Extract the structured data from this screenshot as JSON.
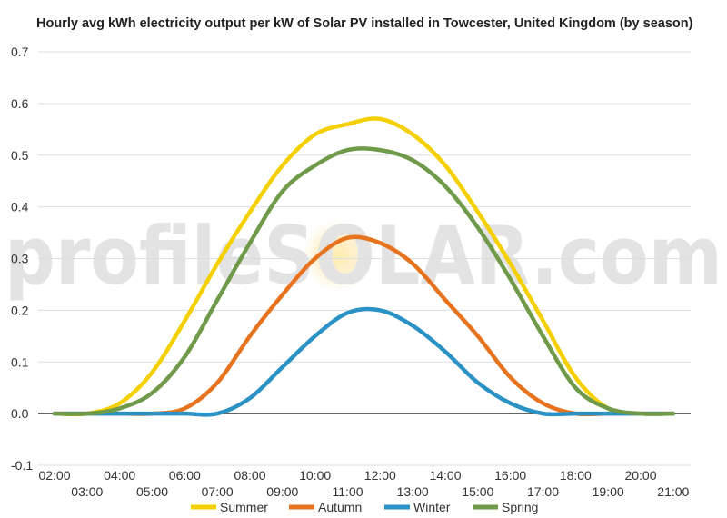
{
  "chart_data": {
    "type": "line",
    "title": "Hourly avg kWh electricity output per kW of Solar PV installed in Towcester, United Kingdom (by season)",
    "xlabel": "",
    "ylabel": "",
    "ylim": [
      -0.1,
      0.7
    ],
    "yticks": [
      "-0.1",
      "0.0",
      "0.1",
      "0.2",
      "0.3",
      "0.4",
      "0.5",
      "0.6",
      "0.7"
    ],
    "xlim": [
      2,
      21
    ],
    "xticks_upper": [
      "02:00",
      "04:00",
      "06:00",
      "08:00",
      "10:00",
      "12:00",
      "14:00",
      "16:00",
      "18:00",
      "20:00"
    ],
    "xticks_lower": [
      "03:00",
      "05:00",
      "07:00",
      "09:00",
      "11:00",
      "13:00",
      "15:00",
      "17:00",
      "19:00",
      "21:00"
    ],
    "grid": true,
    "legend_position": "bottom",
    "x": [
      2,
      3,
      4,
      5,
      6,
      7,
      8,
      9,
      10,
      11,
      12,
      13,
      14,
      15,
      16,
      17,
      18,
      19,
      20,
      21
    ],
    "series": [
      {
        "name": "Summer",
        "color": "#f5d000",
        "values": [
          0.0,
          0.0,
          0.02,
          0.08,
          0.18,
          0.29,
          0.39,
          0.48,
          0.54,
          0.56,
          0.57,
          0.54,
          0.48,
          0.39,
          0.29,
          0.18,
          0.07,
          0.01,
          0.0,
          0.0
        ]
      },
      {
        "name": "Autumn",
        "color": "#e8731e",
        "values": [
          0.0,
          0.0,
          0.0,
          0.0,
          0.01,
          0.06,
          0.15,
          0.23,
          0.3,
          0.34,
          0.33,
          0.29,
          0.22,
          0.15,
          0.07,
          0.02,
          0.0,
          0.0,
          0.0,
          0.0
        ]
      },
      {
        "name": "Winter",
        "color": "#2a92c4",
        "values": [
          0.0,
          0.0,
          0.0,
          0.0,
          0.0,
          0.0,
          0.03,
          0.09,
          0.15,
          0.195,
          0.2,
          0.17,
          0.12,
          0.06,
          0.02,
          0.0,
          0.0,
          0.0,
          0.0,
          0.0
        ]
      },
      {
        "name": "Spring",
        "color": "#6f9a4a",
        "values": [
          0.0,
          0.0,
          0.01,
          0.04,
          0.11,
          0.22,
          0.33,
          0.43,
          0.48,
          0.51,
          0.51,
          0.49,
          0.44,
          0.36,
          0.26,
          0.15,
          0.05,
          0.01,
          0.0,
          0.0
        ]
      }
    ],
    "watermark": "profileSOLAR.com"
  }
}
